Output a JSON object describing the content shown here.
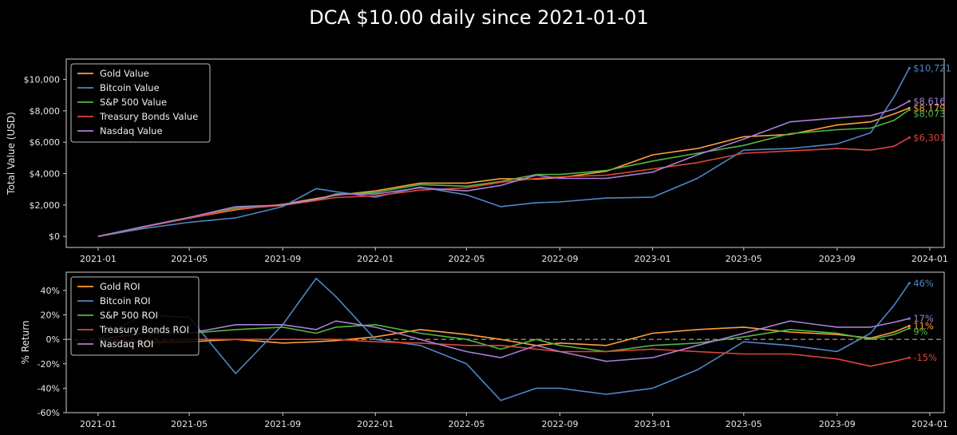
{
  "title": "DCA $10.00 daily since 2021-01-01",
  "colors": {
    "gold": "#ff9f3a",
    "bitcoin": "#4f86c6",
    "sp500": "#4fb840",
    "treasury": "#e0453a",
    "nasdaq": "#a77fd6",
    "background": "#000000",
    "axes": "#cfcfcf",
    "zero_line": "#aaaaaa"
  },
  "x_ticks": [
    "2021-01",
    "2021-05",
    "2021-09",
    "2022-01",
    "2022-05",
    "2022-09",
    "2023-01",
    "2023-05",
    "2023-09",
    "2024-01"
  ],
  "chart_data": [
    {
      "type": "line",
      "ylabel": "Total Value (USD)",
      "ylim": [
        -700,
        11300
      ],
      "y_ticks": [
        {
          "value": 0,
          "label": "$0"
        },
        {
          "value": 2000,
          "label": "$2,000"
        },
        {
          "value": 4000,
          "label": "$4,000"
        },
        {
          "value": 6000,
          "label": "$6,000"
        },
        {
          "value": 8000,
          "label": "$8,000"
        },
        {
          "value": 10000,
          "label": "$10,000"
        }
      ],
      "legend": "upper-left",
      "x": [
        "2021-01-01",
        "2021-03-01",
        "2021-05-01",
        "2021-07-01",
        "2021-09-01",
        "2021-10-15",
        "2021-11-10",
        "2022-01-01",
        "2022-03-01",
        "2022-05-01",
        "2022-06-15",
        "2022-08-01",
        "2022-09-01",
        "2022-11-01",
        "2023-01-01",
        "2023-03-01",
        "2023-05-01",
        "2023-07-01",
        "2023-09-01",
        "2023-10-15",
        "2023-11-15",
        "2023-12-05"
      ],
      "series": [
        {
          "name": "Gold Value",
          "key": "gold",
          "end_label": "$8,179",
          "values": [
            0,
            590,
            1170,
            1700,
            2040,
            2420,
            2620,
            2900,
            3400,
            3400,
            3680,
            3650,
            3750,
            4150,
            5200,
            5600,
            6350,
            6500,
            7100,
            7300,
            7800,
            8179
          ]
        },
        {
          "name": "Bitcoin Value",
          "key": "bitcoin",
          "end_label": "$10,721",
          "values": [
            0,
            500,
            900,
            1180,
            1900,
            3050,
            2850,
            2500,
            3150,
            2650,
            1900,
            2150,
            2200,
            2450,
            2500,
            3700,
            5500,
            5600,
            5900,
            6600,
            8900,
            10721
          ]
        },
        {
          "name": "S&P 500 Value",
          "key": "sp500",
          "end_label": "$8,073",
          "values": [
            0,
            610,
            1210,
            1800,
            2000,
            2300,
            2650,
            2800,
            3300,
            3200,
            3500,
            3950,
            3950,
            4200,
            4800,
            5300,
            5800,
            6550,
            6800,
            6900,
            7400,
            8073
          ]
        },
        {
          "name": "Treasury Bonds Value",
          "key": "treasury",
          "end_label": "$6,301",
          "values": [
            0,
            590,
            1180,
            1740,
            1980,
            2290,
            2480,
            2590,
            2950,
            3100,
            3450,
            3700,
            3800,
            3900,
            4300,
            4700,
            5300,
            5450,
            5600,
            5500,
            5750,
            6301
          ]
        },
        {
          "name": "Nasdaq Value",
          "key": "nasdaq",
          "end_label": "$8,616",
          "values": [
            0,
            620,
            1210,
            1900,
            2000,
            2350,
            2700,
            2700,
            3100,
            2900,
            3250,
            3900,
            3700,
            3700,
            4100,
            5200,
            6200,
            7300,
            7550,
            7700,
            8100,
            8616
          ]
        }
      ]
    },
    {
      "type": "line",
      "ylabel": "% Return",
      "ylim": [
        -60,
        55
      ],
      "y_ticks": [
        {
          "value": -60,
          "label": "-60%"
        },
        {
          "value": -40,
          "label": "-40%"
        },
        {
          "value": -20,
          "label": "-20%"
        },
        {
          "value": 0,
          "label": "0%"
        },
        {
          "value": 20,
          "label": "20%"
        },
        {
          "value": 40,
          "label": "40%"
        }
      ],
      "zero_line": true,
      "legend": "upper-left",
      "x": [
        "2021-01-01",
        "2021-03-01",
        "2021-05-01",
        "2021-07-01",
        "2021-09-01",
        "2021-10-15",
        "2021-11-10",
        "2022-01-01",
        "2022-03-01",
        "2022-05-01",
        "2022-06-15",
        "2022-08-01",
        "2022-09-01",
        "2022-11-01",
        "2023-01-01",
        "2023-03-01",
        "2023-05-01",
        "2023-07-01",
        "2023-09-01",
        "2023-10-15",
        "2023-11-15",
        "2023-12-05"
      ],
      "series": [
        {
          "name": "Gold ROI",
          "key": "gold",
          "end_label": "11%",
          "values": [
            0,
            -3,
            -2,
            0,
            -3,
            -2,
            -1,
            2,
            8,
            4,
            0,
            -5,
            -3,
            -5,
            5,
            8,
            10,
            6,
            4,
            1,
            6,
            11
          ]
        },
        {
          "name": "Bitcoin ROI",
          "key": "bitcoin",
          "end_label": "46%",
          "values": [
            0,
            20,
            18,
            -28,
            12,
            50,
            35,
            0,
            -5,
            -20,
            -50,
            -40,
            -40,
            -45,
            -40,
            -25,
            -2,
            -5,
            -10,
            5,
            28,
            46
          ]
        },
        {
          "name": "S&P 500 ROI",
          "key": "sp500",
          "end_label": "9%",
          "values": [
            0,
            5,
            5,
            8,
            10,
            5,
            10,
            12,
            5,
            0,
            -8,
            0,
            -5,
            -10,
            -5,
            -3,
            2,
            8,
            5,
            0,
            4,
            9
          ]
        },
        {
          "name": "Treasury Bonds ROI",
          "key": "treasury",
          "end_label": "-15%",
          "values": [
            0,
            -2,
            0,
            0,
            0,
            0,
            0,
            -2,
            -3,
            -5,
            -5,
            -8,
            -10,
            -10,
            -8,
            -10,
            -12,
            -12,
            -16,
            -22,
            -18,
            -15
          ]
        },
        {
          "name": "Nasdaq ROI",
          "key": "nasdaq",
          "end_label": "17%",
          "values": [
            0,
            5,
            5,
            12,
            12,
            8,
            15,
            10,
            0,
            -10,
            -15,
            -5,
            -10,
            -18,
            -15,
            -5,
            5,
            15,
            10,
            10,
            14,
            17
          ]
        }
      ]
    }
  ]
}
